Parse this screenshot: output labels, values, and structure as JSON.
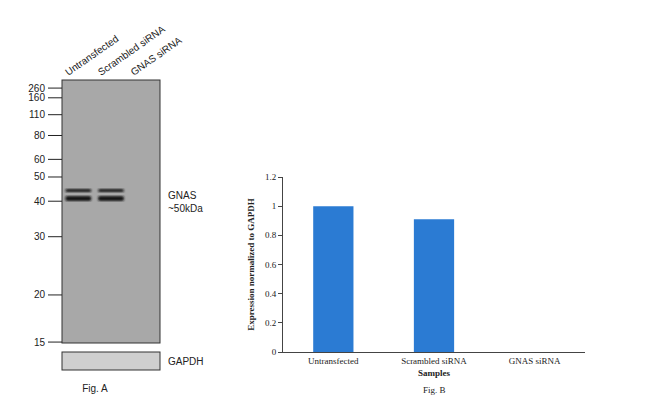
{
  "chart_data": {
    "type": "bar",
    "categories": [
      "Untransfected",
      "Scrambled siRNA",
      "GNAS siRNA"
    ],
    "values": [
      1,
      0.91,
      0
    ],
    "color": "#2b7bd3",
    "xlabel": "Samples",
    "ylabel": "Expression normalized to GAPDH",
    "ylim": [
      0,
      1.2
    ],
    "yticks": [
      0,
      0.2,
      0.4,
      0.6,
      0.8,
      1,
      1.2
    ],
    "grid": false,
    "annotations": [
      "Fig. B"
    ]
  },
  "figure_a": {
    "lanes": [
      {
        "label": "Untransfected",
        "gnas_bands_kda": [
          44,
          41
        ]
      },
      {
        "label": "Scrambled siRNA",
        "gnas_bands_kda": [
          44,
          41
        ]
      },
      {
        "label": "GNAS siRNA",
        "gnas_bands_kda": []
      }
    ],
    "markers_kda": [
      260,
      160,
      110,
      80,
      60,
      50,
      40,
      30,
      20,
      15
    ],
    "target_label": [
      "GNAS",
      "~50kDa"
    ],
    "loading_control": "GAPDH",
    "caption": "Fig. A"
  }
}
